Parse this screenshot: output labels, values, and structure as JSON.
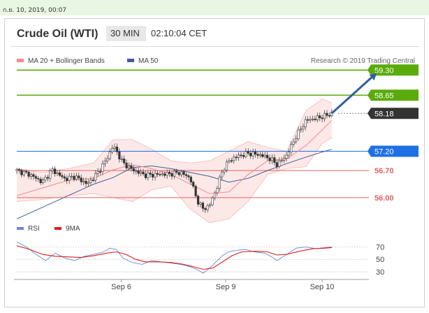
{
  "date_label": "ก.ย. 10, 2019, 00:07",
  "header": {
    "instrument": "Crude Oil (WTI)",
    "timeframe": "30 MIN",
    "time": "02:10:04 CET"
  },
  "colors": {
    "green": "#5aab0b",
    "black": "#333333",
    "blue": "#1f6fe5",
    "red": "#e06262",
    "ma20": "#f48b8b",
    "ma50": "#3d5c99",
    "band": "#fde2e2",
    "rsi": "#6b86d6",
    "rsi_ma": "#e01b1b",
    "arrow": "#2f5f9f"
  },
  "chart_data": [
    {
      "type": "candlestick",
      "title": "Crude Oil (WTI)",
      "legend": [
        {
          "label": "MA 20 + Bollinger Bands",
          "color": "#f48b8b"
        },
        {
          "label": "MA 50",
          "color": "#3d5c99"
        }
      ],
      "credit": "Research © 2019 Trading Central",
      "ylim": [
        55.6,
        59.45
      ],
      "x_range": [
        0,
        100
      ],
      "x_tick_labels": [
        {
          "x": 32.5,
          "label": "Sep 6"
        },
        {
          "x": 65,
          "label": "Sep 9"
        },
        {
          "x": 95,
          "label": "Sep 10"
        }
      ],
      "price_levels": [
        {
          "value": 59.3,
          "label": "59.30",
          "kind": "resistance",
          "color": "#5aab0b",
          "tag": true
        },
        {
          "value": 58.65,
          "label": "58.65",
          "kind": "resistance",
          "color": "#5aab0b",
          "tag": true
        },
        {
          "value": 58.18,
          "label": "58.18",
          "kind": "last_price",
          "color": "#333333",
          "tag": true
        },
        {
          "value": 57.2,
          "label": "57.20",
          "kind": "pivot",
          "color": "#1f6fe5",
          "tag": true
        },
        {
          "value": 56.7,
          "label": "56.70",
          "kind": "support",
          "color": "#e06262",
          "tag": false
        },
        {
          "value": 56.0,
          "label": "56.00",
          "kind": "support",
          "color": "#e06262",
          "tag": false
        }
      ],
      "close_series": [
        {
          "x": 0,
          "y": 56.7
        },
        {
          "x": 4,
          "y": 56.6
        },
        {
          "x": 8,
          "y": 56.4
        },
        {
          "x": 11,
          "y": 56.72
        },
        {
          "x": 15,
          "y": 56.48
        },
        {
          "x": 18,
          "y": 56.55
        },
        {
          "x": 22,
          "y": 56.35
        },
        {
          "x": 25,
          "y": 56.62
        },
        {
          "x": 28,
          "y": 57.0
        },
        {
          "x": 30,
          "y": 57.35
        },
        {
          "x": 33,
          "y": 56.9
        },
        {
          "x": 36,
          "y": 56.72
        },
        {
          "x": 40,
          "y": 56.58
        },
        {
          "x": 44,
          "y": 56.6
        },
        {
          "x": 48,
          "y": 56.62
        },
        {
          "x": 51,
          "y": 56.65
        },
        {
          "x": 54,
          "y": 56.5
        },
        {
          "x": 56,
          "y": 55.95
        },
        {
          "x": 58,
          "y": 55.7
        },
        {
          "x": 60,
          "y": 55.8
        },
        {
          "x": 62,
          "y": 56.2
        },
        {
          "x": 64,
          "y": 56.7
        },
        {
          "x": 66,
          "y": 56.95
        },
        {
          "x": 68,
          "y": 57.05
        },
        {
          "x": 72,
          "y": 57.15
        },
        {
          "x": 76,
          "y": 57.1
        },
        {
          "x": 79,
          "y": 57.0
        },
        {
          "x": 81,
          "y": 56.85
        },
        {
          "x": 84,
          "y": 57.1
        },
        {
          "x": 87,
          "y": 57.6
        },
        {
          "x": 90,
          "y": 58.0
        },
        {
          "x": 93,
          "y": 58.05
        },
        {
          "x": 96,
          "y": 58.12
        },
        {
          "x": 98,
          "y": 58.18
        }
      ],
      "ma20": [
        {
          "x": 0,
          "y": 56.05
        },
        {
          "x": 8,
          "y": 56.25
        },
        {
          "x": 16,
          "y": 56.45
        },
        {
          "x": 24,
          "y": 56.5
        },
        {
          "x": 30,
          "y": 56.72
        },
        {
          "x": 36,
          "y": 56.85
        },
        {
          "x": 42,
          "y": 56.75
        },
        {
          "x": 48,
          "y": 56.6
        },
        {
          "x": 54,
          "y": 56.35
        },
        {
          "x": 60,
          "y": 56.1
        },
        {
          "x": 66,
          "y": 56.15
        },
        {
          "x": 72,
          "y": 56.6
        },
        {
          "x": 78,
          "y": 56.95
        },
        {
          "x": 84,
          "y": 57.0
        },
        {
          "x": 90,
          "y": 57.35
        },
        {
          "x": 95,
          "y": 57.75
        },
        {
          "x": 98,
          "y": 58.0
        }
      ],
      "ma50": [
        {
          "x": 0,
          "y": 55.45
        },
        {
          "x": 8,
          "y": 55.75
        },
        {
          "x": 16,
          "y": 56.05
        },
        {
          "x": 24,
          "y": 56.35
        },
        {
          "x": 30,
          "y": 56.52
        },
        {
          "x": 36,
          "y": 56.78
        },
        {
          "x": 42,
          "y": 56.82
        },
        {
          "x": 48,
          "y": 56.75
        },
        {
          "x": 54,
          "y": 56.65
        },
        {
          "x": 60,
          "y": 56.55
        },
        {
          "x": 66,
          "y": 56.4
        },
        {
          "x": 72,
          "y": 56.5
        },
        {
          "x": 78,
          "y": 56.7
        },
        {
          "x": 84,
          "y": 56.88
        },
        {
          "x": 90,
          "y": 57.05
        },
        {
          "x": 95,
          "y": 57.18
        },
        {
          "x": 98,
          "y": 57.25
        }
      ],
      "bollinger_upper": [
        {
          "x": 0,
          "y": 56.75
        },
        {
          "x": 8,
          "y": 56.65
        },
        {
          "x": 16,
          "y": 56.75
        },
        {
          "x": 24,
          "y": 56.9
        },
        {
          "x": 30,
          "y": 57.5
        },
        {
          "x": 36,
          "y": 57.5
        },
        {
          "x": 42,
          "y": 57.25
        },
        {
          "x": 48,
          "y": 56.95
        },
        {
          "x": 54,
          "y": 56.9
        },
        {
          "x": 60,
          "y": 56.95
        },
        {
          "x": 66,
          "y": 57.2
        },
        {
          "x": 72,
          "y": 57.45
        },
        {
          "x": 78,
          "y": 57.3
        },
        {
          "x": 84,
          "y": 57.2
        },
        {
          "x": 90,
          "y": 58.25
        },
        {
          "x": 95,
          "y": 58.55
        },
        {
          "x": 98,
          "y": 58.45
        }
      ],
      "bollinger_lower": [
        {
          "x": 0,
          "y": 55.9
        },
        {
          "x": 8,
          "y": 55.95
        },
        {
          "x": 16,
          "y": 56.05
        },
        {
          "x": 24,
          "y": 56.1
        },
        {
          "x": 30,
          "y": 56.0
        },
        {
          "x": 36,
          "y": 55.9
        },
        {
          "x": 42,
          "y": 56.2
        },
        {
          "x": 48,
          "y": 56.3
        },
        {
          "x": 54,
          "y": 55.7
        },
        {
          "x": 60,
          "y": 55.35
        },
        {
          "x": 66,
          "y": 55.45
        },
        {
          "x": 72,
          "y": 55.9
        },
        {
          "x": 78,
          "y": 56.6
        },
        {
          "x": 84,
          "y": 56.75
        },
        {
          "x": 90,
          "y": 56.8
        },
        {
          "x": 95,
          "y": 57.4
        },
        {
          "x": 98,
          "y": 57.55
        }
      ],
      "projection": {
        "from": {
          "x": 98,
          "y": 58.18
        },
        "to": {
          "x": 112,
          "y": 59.22
        }
      }
    },
    {
      "type": "line",
      "title": "RSI",
      "legend": [
        {
          "label": "RSI",
          "color": "#6b86d6"
        },
        {
          "label": "9MA",
          "color": "#e01b1b"
        }
      ],
      "ylim": [
        20,
        85
      ],
      "y_tick_labels": [
        {
          "value": 70,
          "label": "70"
        },
        {
          "value": 50,
          "label": "50"
        },
        {
          "value": 30,
          "label": "30"
        }
      ],
      "series": [
        {
          "name": "RSI",
          "points": [
            {
              "x": 0,
              "y": 78
            },
            {
              "x": 3,
              "y": 70
            },
            {
              "x": 6,
              "y": 58
            },
            {
              "x": 9,
              "y": 48
            },
            {
              "x": 12,
              "y": 60
            },
            {
              "x": 15,
              "y": 52
            },
            {
              "x": 18,
              "y": 48
            },
            {
              "x": 21,
              "y": 55
            },
            {
              "x": 24,
              "y": 58
            },
            {
              "x": 27,
              "y": 62
            },
            {
              "x": 29,
              "y": 68
            },
            {
              "x": 31,
              "y": 66
            },
            {
              "x": 33,
              "y": 52
            },
            {
              "x": 36,
              "y": 45
            },
            {
              "x": 39,
              "y": 42
            },
            {
              "x": 42,
              "y": 48
            },
            {
              "x": 45,
              "y": 46
            },
            {
              "x": 48,
              "y": 44
            },
            {
              "x": 51,
              "y": 42
            },
            {
              "x": 54,
              "y": 38
            },
            {
              "x": 56,
              "y": 34
            },
            {
              "x": 58,
              "y": 28
            },
            {
              "x": 60,
              "y": 36
            },
            {
              "x": 62,
              "y": 46
            },
            {
              "x": 64,
              "y": 56
            },
            {
              "x": 66,
              "y": 62
            },
            {
              "x": 68,
              "y": 64
            },
            {
              "x": 71,
              "y": 66
            },
            {
              "x": 74,
              "y": 62
            },
            {
              "x": 77,
              "y": 60
            },
            {
              "x": 79,
              "y": 55
            },
            {
              "x": 81,
              "y": 48
            },
            {
              "x": 84,
              "y": 58
            },
            {
              "x": 87,
              "y": 68
            },
            {
              "x": 90,
              "y": 70
            },
            {
              "x": 93,
              "y": 67
            },
            {
              "x": 96,
              "y": 69
            },
            {
              "x": 98,
              "y": 70
            }
          ]
        },
        {
          "name": "9MA",
          "points": [
            {
              "x": 0,
              "y": 72
            },
            {
              "x": 4,
              "y": 66
            },
            {
              "x": 8,
              "y": 58
            },
            {
              "x": 12,
              "y": 55
            },
            {
              "x": 16,
              "y": 54
            },
            {
              "x": 20,
              "y": 53
            },
            {
              "x": 24,
              "y": 56
            },
            {
              "x": 28,
              "y": 60
            },
            {
              "x": 31,
              "y": 62
            },
            {
              "x": 34,
              "y": 58
            },
            {
              "x": 37,
              "y": 50
            },
            {
              "x": 40,
              "y": 46
            },
            {
              "x": 44,
              "y": 46
            },
            {
              "x": 48,
              "y": 45
            },
            {
              "x": 52,
              "y": 42
            },
            {
              "x": 55,
              "y": 38
            },
            {
              "x": 58,
              "y": 34
            },
            {
              "x": 61,
              "y": 36
            },
            {
              "x": 64,
              "y": 46
            },
            {
              "x": 67,
              "y": 56
            },
            {
              "x": 70,
              "y": 62
            },
            {
              "x": 74,
              "y": 63
            },
            {
              "x": 78,
              "y": 62
            },
            {
              "x": 81,
              "y": 57
            },
            {
              "x": 84,
              "y": 58
            },
            {
              "x": 88,
              "y": 63
            },
            {
              "x": 92,
              "y": 67
            },
            {
              "x": 96,
              "y": 68
            },
            {
              "x": 98,
              "y": 69
            }
          ]
        }
      ]
    }
  ]
}
